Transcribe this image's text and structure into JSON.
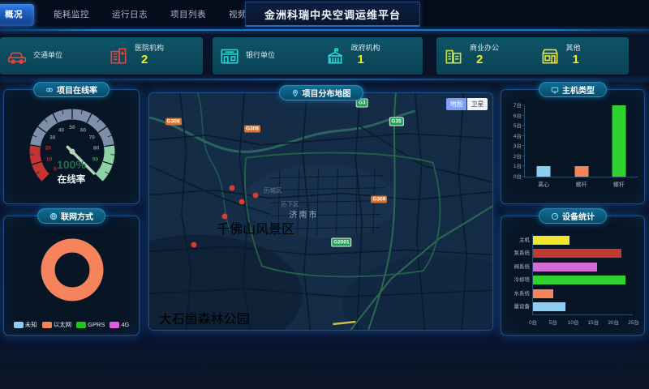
{
  "topbar": {
    "title": "金洲科瑞中央空调运维平台",
    "tabs": [
      {
        "label": "概况",
        "active": true
      },
      {
        "label": "能耗监控",
        "active": false
      },
      {
        "label": "运行日志",
        "active": false
      },
      {
        "label": "项目列表",
        "active": false
      },
      {
        "label": "视频监控",
        "active": false
      }
    ]
  },
  "stat_cards": [
    {
      "items": [
        {
          "icon": "car-icon",
          "label": "交通单位",
          "value": "",
          "color": "#e8453c"
        },
        {
          "icon": "hospital-icon",
          "label": "医院机构",
          "value": "2",
          "color": "#e8453c"
        }
      ]
    },
    {
      "items": [
        {
          "icon": "bank-icon",
          "label": "银行单位",
          "value": "",
          "color": "#29d3d3"
        },
        {
          "icon": "government-icon",
          "label": "政府机构",
          "value": "1",
          "color": "#29d3d3"
        }
      ]
    },
    {
      "items": [
        {
          "icon": "office-building-icon",
          "label": "商业办公",
          "value": "2",
          "color": "#c6e34a"
        },
        {
          "icon": "shop-icon",
          "label": "其他",
          "value": "1",
          "color": "#e8e23c"
        }
      ]
    }
  ],
  "panels": {
    "online_rate": {
      "title": "项目在线率"
    },
    "connection": {
      "title": "联网方式"
    },
    "map": {
      "title": "项目分布地图"
    },
    "host_type": {
      "title": "主机类型"
    },
    "device_stats": {
      "title": "设备统计"
    }
  },
  "map": {
    "controls": [
      {
        "label": "地图",
        "active": true
      },
      {
        "label": "卫星",
        "active": false
      }
    ],
    "markers": [
      {
        "type": "road-shield",
        "style": "national",
        "label": "G308",
        "x": 7,
        "y": 12
      },
      {
        "type": "road-shield",
        "style": "national",
        "label": "G308",
        "x": 30,
        "y": 15
      },
      {
        "type": "road-shield",
        "style": "expressway",
        "label": "G3",
        "x": 62,
        "y": 4
      },
      {
        "type": "road-shield",
        "style": "expressway",
        "label": "G35",
        "x": 72,
        "y": 12
      },
      {
        "type": "road-shield",
        "style": "national",
        "label": "G309",
        "x": 67,
        "y": 45
      },
      {
        "type": "road-shield",
        "style": "expressway",
        "label": "G2001",
        "x": 56,
        "y": 63
      },
      {
        "type": "city-label",
        "label": "济南市",
        "x": 45,
        "y": 51
      },
      {
        "type": "district-label",
        "label": "历城区",
        "x": 36,
        "y": 41
      },
      {
        "type": "district-label",
        "label": "历下区",
        "x": 41,
        "y": 47
      },
      {
        "type": "poi-marker",
        "label": "千佛山风景区",
        "x": 31,
        "y": 57
      },
      {
        "type": "poi-marker",
        "label": "大石崮森林公园",
        "x": 16,
        "y": 95
      },
      {
        "type": "project-marker",
        "x": 6,
        "y": 47
      },
      {
        "type": "project-marker",
        "x": 9,
        "y": 24
      },
      {
        "type": "project-marker",
        "x": 13,
        "y": 37
      },
      {
        "type": "project-marker",
        "x": 17,
        "y": 20
      },
      {
        "type": "project-marker",
        "x": 20,
        "y": 30
      },
      {
        "type": "project-marker",
        "x": 14,
        "y": 56
      },
      {
        "type": "project-marker",
        "x": 8,
        "y": 62
      },
      {
        "type": "project-marker",
        "x": 21,
        "y": 61
      },
      {
        "type": "project-marker",
        "x": 33,
        "y": 34
      },
      {
        "type": "project-marker",
        "x": 38,
        "y": 30
      },
      {
        "type": "project-marker",
        "x": 44,
        "y": 36
      },
      {
        "type": "project-marker",
        "x": 50,
        "y": 33
      },
      {
        "type": "project-marker",
        "x": 56,
        "y": 30
      },
      {
        "type": "project-marker",
        "x": 63,
        "y": 25
      },
      {
        "type": "project-marker",
        "x": 70,
        "y": 21
      },
      {
        "type": "project-marker",
        "x": 78,
        "y": 17
      },
      {
        "type": "project-marker",
        "x": 85,
        "y": 22
      },
      {
        "type": "project-marker",
        "x": 90,
        "y": 34
      },
      {
        "type": "project-marker",
        "x": 74,
        "y": 40
      },
      {
        "type": "project-marker",
        "x": 81,
        "y": 53
      },
      {
        "type": "project-marker",
        "x": 68,
        "y": 58
      },
      {
        "type": "project-marker",
        "x": 48,
        "y": 62
      },
      {
        "type": "project-marker",
        "x": 39,
        "y": 70
      },
      {
        "type": "project-marker",
        "x": 55,
        "y": 72
      },
      {
        "type": "project-marker",
        "x": 65,
        "y": 79
      },
      {
        "type": "project-marker",
        "x": 30,
        "y": 78
      },
      {
        "type": "red-dot",
        "x": 24,
        "y": 40
      },
      {
        "type": "red-dot",
        "x": 27,
        "y": 46
      },
      {
        "type": "red-dot",
        "x": 22,
        "y": 52
      },
      {
        "type": "red-dot",
        "x": 13,
        "y": 64
      },
      {
        "type": "red-dot",
        "x": 31,
        "y": 43
      }
    ]
  },
  "chart_data": [
    {
      "id": "online-rate-gauge",
      "type": "gauge",
      "title": "项目在线率",
      "value": 100,
      "min": 0,
      "max": 100,
      "center_text": "100%",
      "center_label": "在线率",
      "ticks": [
        0,
        10,
        20,
        30,
        40,
        50,
        60,
        70,
        80,
        90
      ],
      "zones": [
        {
          "from": 0,
          "to": 20,
          "color": "#c23531"
        },
        {
          "from": 20,
          "to": 80,
          "color": "#7e8fa9"
        },
        {
          "from": 80,
          "to": 100,
          "color": "#8fd0a5"
        }
      ]
    },
    {
      "id": "connection-pie",
      "type": "pie",
      "title": "联网方式",
      "legend_position": "bottom",
      "slices": [
        {
          "name": "未知",
          "percent": 0,
          "color": "#8ecdf2"
        },
        {
          "name": "以太网",
          "percent": 100,
          "color": "#f5845c"
        },
        {
          "name": "GPRS",
          "percent": 0,
          "color": "#1ec71e"
        },
        {
          "name": "4G",
          "percent": 0,
          "color": "#e05ce0"
        }
      ]
    },
    {
      "id": "host-type-bar",
      "type": "bar",
      "title": "主机类型",
      "categories": [
        "离心",
        "螺杆",
        "螺杆"
      ],
      "values": [
        1,
        1,
        7
      ],
      "bar_colors": [
        "#8ecdf2",
        "#f5845c",
        "#2fd32f"
      ],
      "ylim": [
        0,
        7
      ],
      "yticks": [
        0,
        1,
        2,
        3,
        4,
        5,
        6,
        7
      ],
      "unit": "台"
    },
    {
      "id": "device-stats-hbar",
      "type": "bar",
      "orientation": "horizontal",
      "title": "设备统计",
      "categories": [
        "主机",
        "泵系统",
        "阀系统",
        "冷却塔",
        "水系统",
        "量设备"
      ],
      "values": [
        9,
        22,
        16,
        23,
        5,
        8
      ],
      "bar_colors": [
        "#f2e52e",
        "#bf3b30",
        "#d46bd4",
        "#2fd32f",
        "#f5845c",
        "#8ecdf2"
      ],
      "xlim": [
        0,
        25
      ],
      "xticks": [
        0,
        5,
        10,
        15,
        20,
        25
      ],
      "unit": "台"
    }
  ]
}
